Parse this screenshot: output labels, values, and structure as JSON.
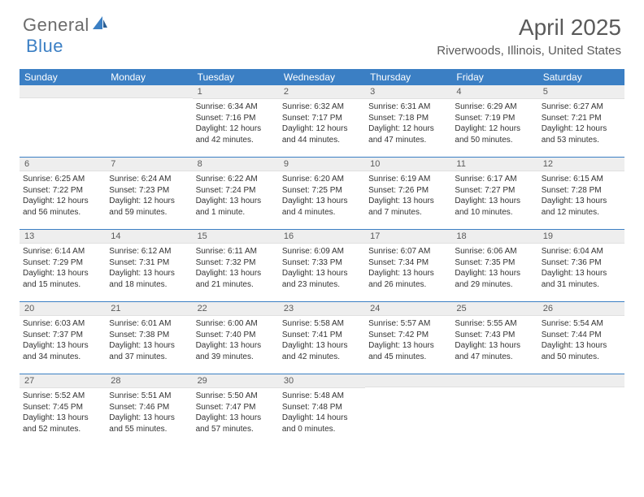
{
  "logo": {
    "general": "General",
    "blue": "Blue"
  },
  "title": "April 2025",
  "location": "Riverwoods, Illinois, United States",
  "colors": {
    "header_bg": "#3b7fc4",
    "header_text": "#ffffff",
    "daynum_bg": "#eeeeee",
    "week_sep": "#3b7fc4",
    "body_text": "#333333",
    "title_text": "#5a5a5a"
  },
  "day_names": [
    "Sunday",
    "Monday",
    "Tuesday",
    "Wednesday",
    "Thursday",
    "Friday",
    "Saturday"
  ],
  "first_weekday_index": 2,
  "days_in_month": 30,
  "days": {
    "1": {
      "sunrise": "6:34 AM",
      "sunset": "7:16 PM",
      "daylight": "12 hours and 42 minutes."
    },
    "2": {
      "sunrise": "6:32 AM",
      "sunset": "7:17 PM",
      "daylight": "12 hours and 44 minutes."
    },
    "3": {
      "sunrise": "6:31 AM",
      "sunset": "7:18 PM",
      "daylight": "12 hours and 47 minutes."
    },
    "4": {
      "sunrise": "6:29 AM",
      "sunset": "7:19 PM",
      "daylight": "12 hours and 50 minutes."
    },
    "5": {
      "sunrise": "6:27 AM",
      "sunset": "7:21 PM",
      "daylight": "12 hours and 53 minutes."
    },
    "6": {
      "sunrise": "6:25 AM",
      "sunset": "7:22 PM",
      "daylight": "12 hours and 56 minutes."
    },
    "7": {
      "sunrise": "6:24 AM",
      "sunset": "7:23 PM",
      "daylight": "12 hours and 59 minutes."
    },
    "8": {
      "sunrise": "6:22 AM",
      "sunset": "7:24 PM",
      "daylight": "13 hours and 1 minute."
    },
    "9": {
      "sunrise": "6:20 AM",
      "sunset": "7:25 PM",
      "daylight": "13 hours and 4 minutes."
    },
    "10": {
      "sunrise": "6:19 AM",
      "sunset": "7:26 PM",
      "daylight": "13 hours and 7 minutes."
    },
    "11": {
      "sunrise": "6:17 AM",
      "sunset": "7:27 PM",
      "daylight": "13 hours and 10 minutes."
    },
    "12": {
      "sunrise": "6:15 AM",
      "sunset": "7:28 PM",
      "daylight": "13 hours and 12 minutes."
    },
    "13": {
      "sunrise": "6:14 AM",
      "sunset": "7:29 PM",
      "daylight": "13 hours and 15 minutes."
    },
    "14": {
      "sunrise": "6:12 AM",
      "sunset": "7:31 PM",
      "daylight": "13 hours and 18 minutes."
    },
    "15": {
      "sunrise": "6:11 AM",
      "sunset": "7:32 PM",
      "daylight": "13 hours and 21 minutes."
    },
    "16": {
      "sunrise": "6:09 AM",
      "sunset": "7:33 PM",
      "daylight": "13 hours and 23 minutes."
    },
    "17": {
      "sunrise": "6:07 AM",
      "sunset": "7:34 PM",
      "daylight": "13 hours and 26 minutes."
    },
    "18": {
      "sunrise": "6:06 AM",
      "sunset": "7:35 PM",
      "daylight": "13 hours and 29 minutes."
    },
    "19": {
      "sunrise": "6:04 AM",
      "sunset": "7:36 PM",
      "daylight": "13 hours and 31 minutes."
    },
    "20": {
      "sunrise": "6:03 AM",
      "sunset": "7:37 PM",
      "daylight": "13 hours and 34 minutes."
    },
    "21": {
      "sunrise": "6:01 AM",
      "sunset": "7:38 PM",
      "daylight": "13 hours and 37 minutes."
    },
    "22": {
      "sunrise": "6:00 AM",
      "sunset": "7:40 PM",
      "daylight": "13 hours and 39 minutes."
    },
    "23": {
      "sunrise": "5:58 AM",
      "sunset": "7:41 PM",
      "daylight": "13 hours and 42 minutes."
    },
    "24": {
      "sunrise": "5:57 AM",
      "sunset": "7:42 PM",
      "daylight": "13 hours and 45 minutes."
    },
    "25": {
      "sunrise": "5:55 AM",
      "sunset": "7:43 PM",
      "daylight": "13 hours and 47 minutes."
    },
    "26": {
      "sunrise": "5:54 AM",
      "sunset": "7:44 PM",
      "daylight": "13 hours and 50 minutes."
    },
    "27": {
      "sunrise": "5:52 AM",
      "sunset": "7:45 PM",
      "daylight": "13 hours and 52 minutes."
    },
    "28": {
      "sunrise": "5:51 AM",
      "sunset": "7:46 PM",
      "daylight": "13 hours and 55 minutes."
    },
    "29": {
      "sunrise": "5:50 AM",
      "sunset": "7:47 PM",
      "daylight": "13 hours and 57 minutes."
    },
    "30": {
      "sunrise": "5:48 AM",
      "sunset": "7:48 PM",
      "daylight": "14 hours and 0 minutes."
    }
  },
  "labels": {
    "sunrise": "Sunrise: ",
    "sunset": "Sunset: ",
    "daylight": "Daylight: "
  }
}
